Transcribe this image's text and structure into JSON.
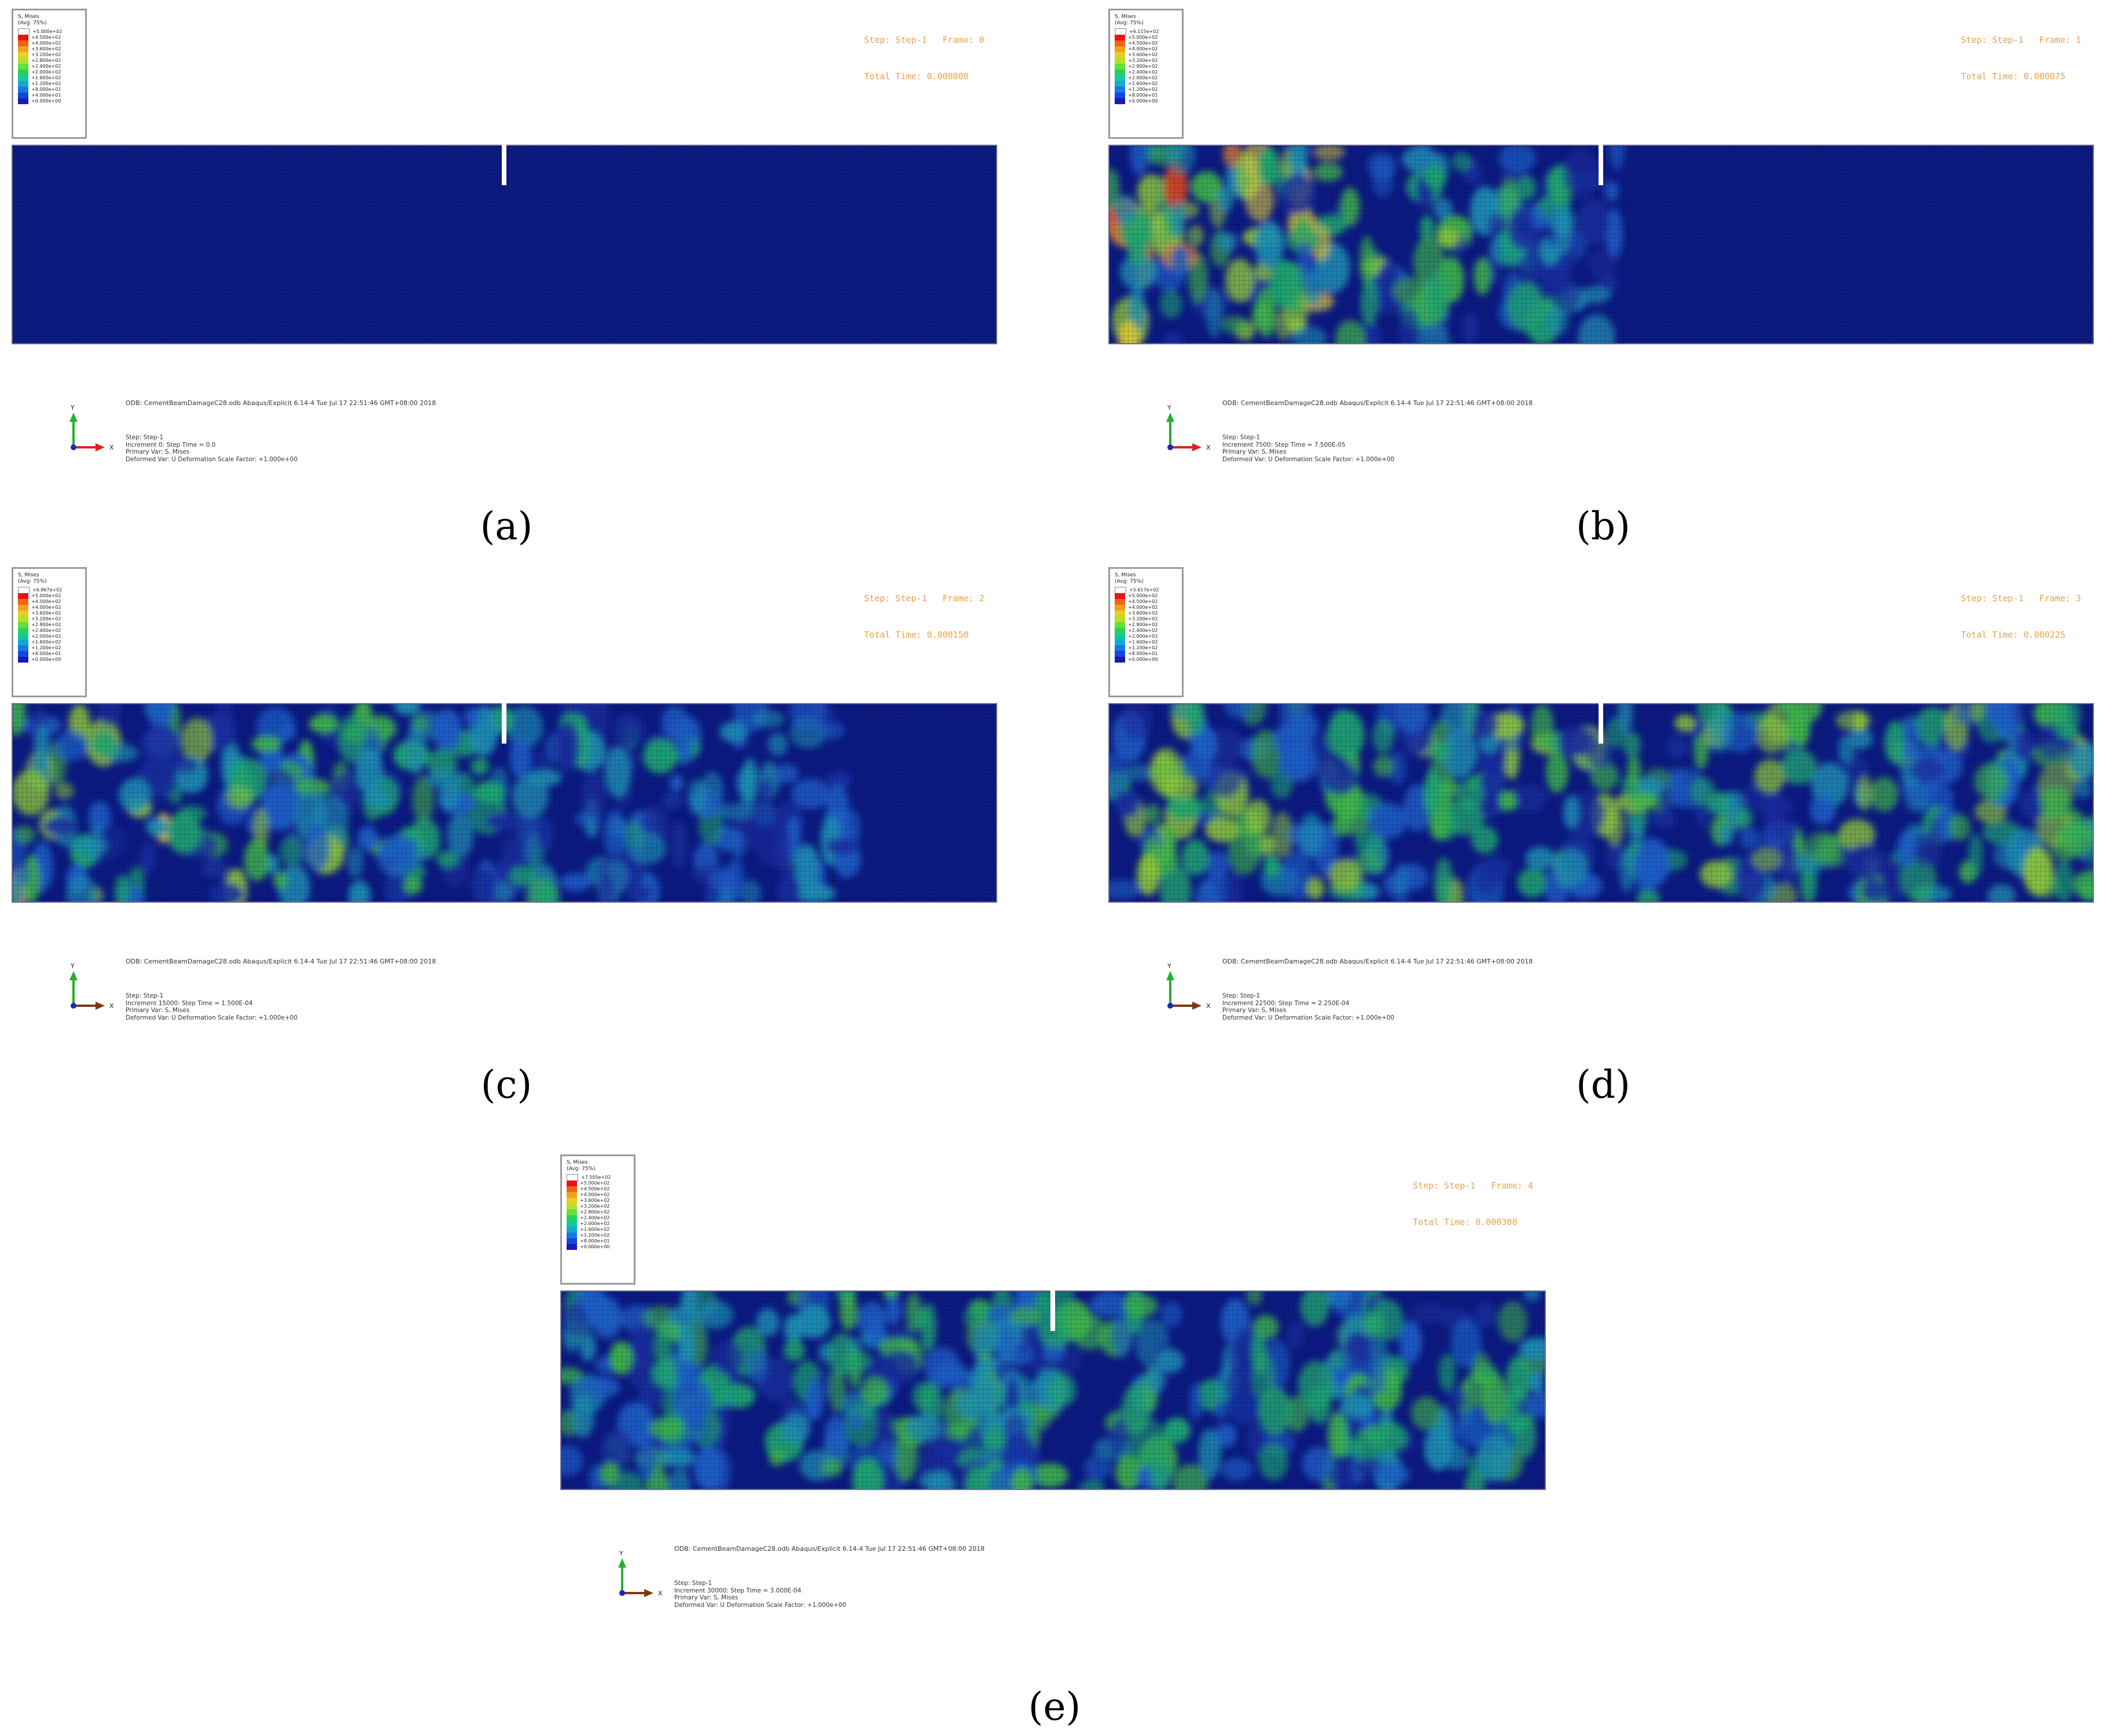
{
  "legend": {
    "title": "S, Mises",
    "subtitle": "(Avg: 75%)",
    "colors": [
      "#ffffff",
      "#ee1111",
      "#f06414",
      "#f0a01e",
      "#e8d020",
      "#b4e028",
      "#64e03c",
      "#28d25a",
      "#14c8a0",
      "#14a8d2",
      "#1478e6",
      "#1446dc",
      "#1a1ab4",
      "#0a0a78"
    ]
  },
  "panels": [
    {
      "label": "(a)",
      "legend_values": [
        "+5.000e+02",
        "+4.500e+02",
        "+4.000e+02",
        "+3.600e+02",
        "+3.200e+02",
        "+2.800e+02",
        "+2.400e+02",
        "+2.000e+02",
        "+1.600e+02",
        "+1.200e+02",
        "+8.000e+01",
        "+4.000e+01",
        "+0.000e+00"
      ],
      "step_line": "Step: Step-1   Frame: 0",
      "time_line": "Total Time: 0.000000",
      "odb": "ODB: CementBeamDamageC28.odb    Abaqus/Explicit 6.14-4    Tue Jul 17 22:51:46 GMT+08:00 2018",
      "info": [
        "Step: Step-1",
        "Increment       0: Step Time = 0.0",
        "Primary Var: S, Mises",
        "Deformed Var: U   Deformation Scale Factor: +1.000e+00"
      ],
      "x_axis_color": "#e0201e",
      "intensity": 0
    },
    {
      "label": "(b)",
      "legend_values": [
        "+6.115e+02",
        "+5.000e+02",
        "+4.500e+02",
        "+4.000e+02",
        "+3.600e+02",
        "+3.200e+02",
        "+2.800e+02",
        "+2.400e+02",
        "+2.000e+02",
        "+1.600e+02",
        "+1.200e+02",
        "+8.000e+01",
        "+0.000e+00"
      ],
      "step_line": "Step: Step-1   Frame: 1",
      "time_line": "Total Time: 0.000075",
      "odb": "ODB: CementBeamDamageC28.odb    Abaqus/Explicit 6.14-4    Tue Jul 17 22:51:46 GMT+08:00 2018",
      "info": [
        "Step: Step-1",
        "Increment    7500: Step Time =  7.500E-05",
        "Primary Var: S, Mises",
        "Deformed Var: U   Deformation Scale Factor: +1.000e+00"
      ],
      "x_axis_color": "#e0201e",
      "intensity": 1
    },
    {
      "label": "(c)",
      "legend_values": [
        "+6.867e+02",
        "+5.000e+02",
        "+4.500e+02",
        "+4.000e+02",
        "+3.600e+02",
        "+3.200e+02",
        "+2.800e+02",
        "+2.400e+02",
        "+2.000e+02",
        "+1.600e+02",
        "+1.200e+02",
        "+8.000e+01",
        "+0.000e+00"
      ],
      "step_line": "Step: Step-1   Frame: 2",
      "time_line": "Total Time: 0.000150",
      "odb": "ODB: CementBeamDamageC28.odb    Abaqus/Explicit 6.14-4    Tue Jul 17 22:51:46 GMT+08:00 2018",
      "info": [
        "Step: Step-1",
        "Increment   15000: Step Time =  1.500E-04",
        "Primary Var: S, Mises",
        "Deformed Var: U   Deformation Scale Factor: +1.000e+00"
      ],
      "x_axis_color": "#7a3a10",
      "intensity": 2
    },
    {
      "label": "(d)",
      "legend_values": [
        "+5.617e+02",
        "+5.000e+02",
        "+4.500e+02",
        "+4.000e+02",
        "+3.600e+02",
        "+3.200e+02",
        "+2.800e+02",
        "+2.400e+02",
        "+2.000e+02",
        "+1.600e+02",
        "+1.200e+02",
        "+8.000e+01",
        "+0.000e+00"
      ],
      "step_line": "Step: Step-1   Frame: 3",
      "time_line": "Total Time: 0.000225",
      "odb": "ODB: CementBeamDamageC28.odb    Abaqus/Explicit 6.14-4    Tue Jul 17 22:51:46 GMT+08:00 2018",
      "info": [
        "Step: Step-1",
        "Increment   22500: Step Time =  2.250E-04",
        "Primary Var: S, Mises",
        "Deformed Var: U   Deformation Scale Factor: +1.000e+00"
      ],
      "x_axis_color": "#7a3a10",
      "intensity": 3
    },
    {
      "label": "(e)",
      "legend_values": [
        "+7.505e+02",
        "+5.000e+02",
        "+4.500e+02",
        "+4.000e+02",
        "+3.600e+02",
        "+3.200e+02",
        "+2.800e+02",
        "+2.400e+02",
        "+2.000e+02",
        "+1.600e+02",
        "+1.200e+02",
        "+8.000e+01",
        "+0.000e+00"
      ],
      "step_line": "Step: Step-1   Frame: 4",
      "time_line": "Total Time: 0.000300",
      "odb": "ODB: CementBeamDamageC28.odb    Abaqus/Explicit 6.14-4    Tue Jul 17 22:51:46 GMT+08:00 2018",
      "info": [
        "Step: Step-1",
        "Increment   30000: Step Time =  3.000E-04",
        "Primary Var: S, Mises",
        "Deformed Var: U   Deformation Scale Factor: +1.000e+00"
      ],
      "x_axis_color": "#7a3a10",
      "intensity": 4
    }
  ],
  "axis_labels": {
    "y": "Y",
    "x": "X"
  }
}
